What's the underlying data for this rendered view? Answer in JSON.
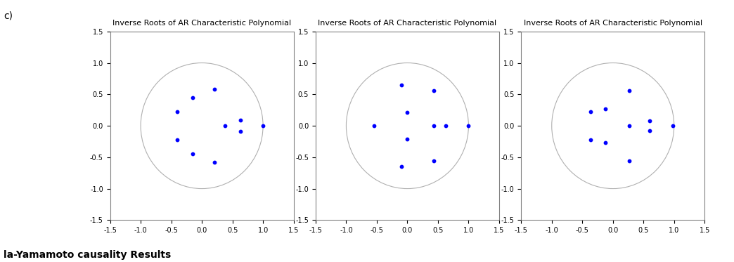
{
  "panel_label": "c)",
  "footer": "la-Yamamoto causality Results",
  "chart_data": [
    {
      "type": "scatter",
      "title": "Inverse Roots of AR Characteristic Polynomial",
      "x": [
        0.2,
        0.2,
        -0.15,
        -0.15,
        -0.4,
        -0.4,
        0.38,
        0.63,
        0.63,
        1.0
      ],
      "values": [
        0.58,
        -0.58,
        0.45,
        -0.45,
        0.22,
        -0.22,
        0.0,
        0.09,
        -0.09,
        0.0
      ],
      "color": "#0000ff",
      "marker": "o",
      "xlim": [
        -1.5,
        1.5
      ],
      "ylim": [
        -1.5,
        1.5
      ],
      "xticks": [
        -1.5,
        -1.0,
        -0.5,
        0.0,
        0.5,
        1.0,
        1.5
      ],
      "yticks": [
        -1.5,
        -1.0,
        -0.5,
        0.0,
        0.5,
        1.0,
        1.5
      ]
    },
    {
      "type": "scatter",
      "title": "Inverse Roots of AR Characteristic Polynomial",
      "x": [
        -0.1,
        -0.1,
        0.0,
        0.0,
        0.43,
        0.43,
        -0.55,
        0.43,
        0.63,
        1.0
      ],
      "values": [
        0.65,
        -0.65,
        0.21,
        -0.21,
        0.56,
        -0.56,
        0.0,
        0.0,
        0.0,
        0.0
      ],
      "color": "#0000ff",
      "marker": "o",
      "xlim": [
        -1.5,
        1.5
      ],
      "ylim": [
        -1.5,
        1.5
      ],
      "xticks": [
        -1.5,
        -1.0,
        -0.5,
        0.0,
        0.5,
        1.0,
        1.5
      ],
      "yticks": [
        -1.5,
        -1.0,
        -0.5,
        0.0,
        0.5,
        1.0,
        1.5
      ]
    },
    {
      "type": "scatter",
      "title": "Inverse Roots of AR Characteristic Polynomial",
      "x": [
        0.27,
        0.27,
        -0.37,
        -0.37,
        -0.12,
        -0.12,
        0.6,
        0.6,
        0.27,
        0.98
      ],
      "values": [
        0.56,
        -0.56,
        0.22,
        -0.22,
        0.27,
        -0.27,
        0.08,
        -0.08,
        0.0,
        0.0
      ],
      "color": "#0000ff",
      "marker": "o",
      "xlim": [
        -1.5,
        1.5
      ],
      "ylim": [
        -1.5,
        1.5
      ],
      "xticks": [
        -1.5,
        -1.0,
        -0.5,
        0.0,
        0.5,
        1.0,
        1.5
      ],
      "yticks": [
        -1.5,
        -1.0,
        -0.5,
        0.0,
        0.5,
        1.0,
        1.5
      ]
    }
  ]
}
